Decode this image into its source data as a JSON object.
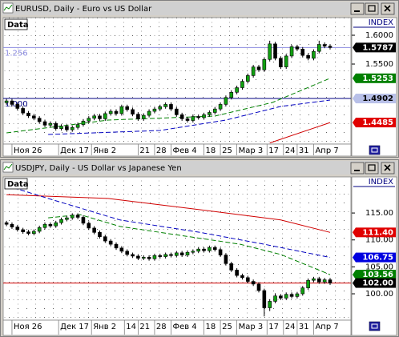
{
  "chart_data": [
    {
      "type": "candlestick",
      "title": "EURUSD, Daily - Euro vs US Dollar",
      "panel_label": "Data",
      "axis_label": "INDEX",
      "up_color": "#10a010",
      "down_color": "#000000",
      "xlim": [
        -0.6,
        62.8
      ],
      "ylim": [
        1.4111,
        1.6306
      ],
      "yticks": [
        {
          "value": 1.6,
          "label": "1.6000"
        },
        {
          "value": 1.55,
          "label": "1.5500"
        }
      ],
      "xticks": [
        {
          "value": 1,
          "label": "Ноя 26"
        },
        {
          "value": 9.5,
          "label": "Дек 17"
        },
        {
          "value": 15.5,
          "label": "Янв 2"
        },
        {
          "value": 24,
          "label": "21"
        },
        {
          "value": 27,
          "label": "28"
        },
        {
          "value": 30,
          "label": "Фев 4"
        },
        {
          "value": 36,
          "label": "18"
        },
        {
          "value": 39,
          "label": "25"
        },
        {
          "value": 42,
          "label": "Мар 3"
        },
        {
          "value": 47.5,
          "label": "17"
        },
        {
          "value": 50.5,
          "label": "24"
        },
        {
          "value": 53,
          "label": "31"
        },
        {
          "value": 56,
          "label": "Апр 7"
        }
      ],
      "hlines": [
        {
          "value": 1.5787,
          "label": "1.256",
          "color": "#8c8ce0"
        },
        {
          "value": 1.4902,
          "label": "1.000",
          "color": "#000080"
        }
      ],
      "last_values": [
        {
          "value": 1.5787,
          "label": "1.5787",
          "color": "#000000",
          "text_color": "#ffffff"
        },
        {
          "value": 1.5253,
          "label": "1.5253",
          "color": "#008000",
          "text_color": "#ffffff"
        },
        {
          "value": 1.4902,
          "label": "1.4902",
          "color": "#b8c0e8",
          "text_color": "#000000"
        },
        {
          "value": 1.4485,
          "label": "1.4485",
          "color": "#e00000",
          "text_color": "#ffffff"
        }
      ],
      "series": [
        {
          "color": "#008000",
          "style": "dashed",
          "x": [
            0,
            18.5,
            38,
            48.5,
            59
          ],
          "values": [
            1.4306,
            1.4528,
            1.4597,
            1.4833,
            1.5253
          ]
        },
        {
          "color": "#0000c0",
          "style": "dashed",
          "x": [
            7.6,
            28,
            40,
            50,
            59
          ],
          "values": [
            1.4278,
            1.4347,
            1.4528,
            1.4764,
            1.4875
          ]
        },
        {
          "color": "#d00000",
          "style": "solid",
          "x": [
            48,
            59
          ],
          "values": [
            1.413,
            1.4485
          ]
        }
      ],
      "candles": [
        [
          1.483,
          1.4895,
          1.4795,
          1.486
        ],
        [
          1.486,
          1.4895,
          1.4765,
          1.48
        ],
        [
          1.48,
          1.4835,
          1.4695,
          1.473
        ],
        [
          1.473,
          1.4765,
          1.4615,
          1.465
        ],
        [
          1.465,
          1.4685,
          1.4565,
          1.46
        ],
        [
          1.46,
          1.4635,
          1.4525,
          1.456
        ],
        [
          1.456,
          1.4595,
          1.4465,
          1.45
        ],
        [
          1.45,
          1.4535,
          1.4405,
          1.444
        ],
        [
          1.444,
          1.4505,
          1.4405,
          1.447
        ],
        [
          1.447,
          1.4505,
          1.4345,
          1.438
        ],
        [
          1.438,
          1.4455,
          1.4345,
          1.442
        ],
        [
          1.442,
          1.4455,
          1.4325,
          1.436
        ],
        [
          1.436,
          1.4435,
          1.4325,
          1.44
        ],
        [
          1.44,
          1.4485,
          1.4365,
          1.445
        ],
        [
          1.445,
          1.4545,
          1.4415,
          1.451
        ],
        [
          1.451,
          1.4595,
          1.4475,
          1.456
        ],
        [
          1.456,
          1.4635,
          1.4525,
          1.46
        ],
        [
          1.46,
          1.4635,
          1.4515,
          1.455
        ],
        [
          1.455,
          1.4675,
          1.4515,
          1.464
        ],
        [
          1.464,
          1.4715,
          1.4605,
          1.468
        ],
        [
          1.468,
          1.4715,
          1.4605,
          1.464
        ],
        [
          1.464,
          1.4795,
          1.4605,
          1.476
        ],
        [
          1.476,
          1.4795,
          1.4675,
          1.471
        ],
        [
          1.471,
          1.4745,
          1.4595,
          1.463
        ],
        [
          1.463,
          1.4665,
          1.4515,
          1.455
        ],
        [
          1.455,
          1.4645,
          1.4515,
          1.461
        ],
        [
          1.461,
          1.4715,
          1.4575,
          1.468
        ],
        [
          1.468,
          1.4755,
          1.4645,
          1.472
        ],
        [
          1.472,
          1.4795,
          1.4685,
          1.476
        ],
        [
          1.476,
          1.4835,
          1.4725,
          1.48
        ],
        [
          1.48,
          1.4835,
          1.4685,
          1.472
        ],
        [
          1.472,
          1.4755,
          1.4585,
          1.462
        ],
        [
          1.462,
          1.4655,
          1.4515,
          1.455
        ],
        [
          1.455,
          1.4585,
          1.4485,
          1.452
        ],
        [
          1.452,
          1.4625,
          1.4485,
          1.459
        ],
        [
          1.459,
          1.4625,
          1.4535,
          1.457
        ],
        [
          1.457,
          1.4655,
          1.4535,
          1.462
        ],
        [
          1.462,
          1.4695,
          1.4585,
          1.466
        ],
        [
          1.466,
          1.4755,
          1.4625,
          1.472
        ],
        [
          1.472,
          1.4835,
          1.4685,
          1.48
        ],
        [
          1.48,
          1.4955,
          1.4765,
          1.492
        ],
        [
          1.492,
          1.5045,
          1.4885,
          1.501
        ],
        [
          1.501,
          1.5125,
          1.4975,
          1.509
        ],
        [
          1.509,
          1.5235,
          1.5055,
          1.52
        ],
        [
          1.52,
          1.5335,
          1.5165,
          1.53
        ],
        [
          1.53,
          1.5485,
          1.5265,
          1.545
        ],
        [
          1.545,
          1.5485,
          1.5365,
          1.54
        ],
        [
          1.54,
          1.5615,
          1.5365,
          1.558
        ],
        [
          1.558,
          1.5905,
          1.5545,
          1.585
        ],
        [
          1.585,
          1.5885,
          1.5565,
          1.56
        ],
        [
          1.56,
          1.5635,
          1.5415,
          1.545
        ],
        [
          1.545,
          1.5675,
          1.5415,
          1.564
        ],
        [
          1.564,
          1.5835,
          1.5605,
          1.58
        ],
        [
          1.58,
          1.5835,
          1.5725,
          1.576
        ],
        [
          1.576,
          1.5795,
          1.5615,
          1.565
        ],
        [
          1.565,
          1.5685,
          1.5565,
          1.56
        ],
        [
          1.56,
          1.5755,
          1.5565,
          1.572
        ],
        [
          1.572,
          1.5905,
          1.5685,
          1.584
        ],
        [
          1.584,
          1.5875,
          1.5775,
          1.581
        ],
        [
          1.581,
          1.5845,
          1.5752,
          1.5787
        ]
      ]
    },
    {
      "type": "candlestick",
      "title": "USDJPY, Daily - US Dollar vs Japanese Yen",
      "panel_label": "Data",
      "axis_label": "INDEX",
      "up_color": "#10a010",
      "down_color": "#000000",
      "xlim": [
        -0.6,
        62.8
      ],
      "ylim": [
        95.1,
        121.7
      ],
      "yticks": [
        {
          "value": 115,
          "label": "115.00"
        },
        {
          "value": 110,
          "label": "110.00"
        },
        {
          "value": 105,
          "label": "105.00"
        },
        {
          "value": 100,
          "label": "100.00"
        }
      ],
      "xticks": [
        {
          "value": 1,
          "label": "Ноя 26"
        },
        {
          "value": 9.5,
          "label": "Дек 17"
        },
        {
          "value": 15.5,
          "label": "Янв 2"
        },
        {
          "value": 21.5,
          "label": "14"
        },
        {
          "value": 24,
          "label": "21"
        },
        {
          "value": 27,
          "label": "28"
        },
        {
          "value": 30,
          "label": "Фев 4"
        },
        {
          "value": 36,
          "label": "18"
        },
        {
          "value": 39,
          "label": "25"
        },
        {
          "value": 42,
          "label": "Мар 3"
        },
        {
          "value": 47.5,
          "label": "17"
        },
        {
          "value": 50.5,
          "label": "24"
        },
        {
          "value": 53,
          "label": "31"
        },
        {
          "value": 56,
          "label": "Апр 7"
        }
      ],
      "hlines": [
        {
          "value": 102,
          "color": "#d00000"
        }
      ],
      "last_values": [
        {
          "value": 111.4,
          "label": "111.40",
          "color": "#e00000",
          "text_color": "#ffffff"
        },
        {
          "value": 106.75,
          "label": "106.75",
          "color": "#0000e0",
          "text_color": "#ffffff"
        },
        {
          "value": 103.56,
          "label": "103.56",
          "color": "#008000",
          "text_color": "#ffffff"
        },
        {
          "value": 102,
          "label": "102.00",
          "color": "#000000",
          "text_color": "#ffffff"
        }
      ],
      "series": [
        {
          "color": "#d00000",
          "style": "solid",
          "x": [
            0,
            18.5,
            35.3,
            50,
            59
          ],
          "values": [
            118.4,
            117.7,
            115.6,
            113.7,
            111.4
          ]
        },
        {
          "color": "#0000c0",
          "style": "dashed",
          "x": [
            0,
            7.6,
            20.7,
            35.3,
            47,
            59
          ],
          "values": [
            120.1,
            117.7,
            113.7,
            111.4,
            109.2,
            106.75
          ]
        },
        {
          "color": "#008000",
          "style": "dashed",
          "x": [
            7.6,
            13.4,
            20.7,
            35.3,
            42.6,
            50,
            59
          ],
          "values": [
            114.1,
            114.7,
            112.5,
            110.3,
            109.2,
            107.3,
            103.56
          ]
        }
      ],
      "candles": [
        [
          113.2,
          113.55,
          112.55,
          112.9
        ],
        [
          112.9,
          113.25,
          112.05,
          112.4
        ],
        [
          112.4,
          112.75,
          111.55,
          111.9
        ],
        [
          111.9,
          112.25,
          111.15,
          111.5
        ],
        [
          111.5,
          111.85,
          110.85,
          111.2
        ],
        [
          111.2,
          111.95,
          110.85,
          111.6
        ],
        [
          111.6,
          112.65,
          111.25,
          112.3
        ],
        [
          112.3,
          113.25,
          111.95,
          112.9
        ],
        [
          112.9,
          113.25,
          112.25,
          112.6
        ],
        [
          112.6,
          113.55,
          112.25,
          113.2
        ],
        [
          113.2,
          114.15,
          112.85,
          113.8
        ],
        [
          113.8,
          114.45,
          113.45,
          114.1
        ],
        [
          114.1,
          114.95,
          113.75,
          114.6
        ],
        [
          114.6,
          114.95,
          113.85,
          114.2
        ],
        [
          114.2,
          114.55,
          112.75,
          113.1
        ],
        [
          113.1,
          113.45,
          111.85,
          112.2
        ],
        [
          112.2,
          112.55,
          111.05,
          111.4
        ],
        [
          111.4,
          111.75,
          110.25,
          110.6
        ],
        [
          110.6,
          110.95,
          109.45,
          109.8
        ],
        [
          109.8,
          110.15,
          108.85,
          109.2
        ],
        [
          109.2,
          109.55,
          108.15,
          108.5
        ],
        [
          108.5,
          108.85,
          107.55,
          107.9
        ],
        [
          107.9,
          108.25,
          106.95,
          107.3
        ],
        [
          107.3,
          107.65,
          106.65,
          107.0
        ],
        [
          107.0,
          107.35,
          106.25,
          106.6
        ],
        [
          106.6,
          107.15,
          106.25,
          106.8
        ],
        [
          106.8,
          107.15,
          106.15,
          106.5
        ],
        [
          106.5,
          107.45,
          106.15,
          107.1
        ],
        [
          107.1,
          107.45,
          106.55,
          106.9
        ],
        [
          106.9,
          107.65,
          106.55,
          107.3
        ],
        [
          107.3,
          107.65,
          106.75,
          107.1
        ],
        [
          107.1,
          107.95,
          106.75,
          107.6
        ],
        [
          107.6,
          107.95,
          106.85,
          107.2
        ],
        [
          107.2,
          108.05,
          106.85,
          107.7
        ],
        [
          107.7,
          108.25,
          107.35,
          107.9
        ],
        [
          107.9,
          108.65,
          107.55,
          108.3
        ],
        [
          108.3,
          108.65,
          107.65,
          108.0
        ],
        [
          108.0,
          108.95,
          107.65,
          108.6
        ],
        [
          108.6,
          108.95,
          107.85,
          108.2
        ],
        [
          108.2,
          108.55,
          106.85,
          107.2
        ],
        [
          107.2,
          107.55,
          105.25,
          105.6
        ],
        [
          105.6,
          105.95,
          104.05,
          104.4
        ],
        [
          104.4,
          104.75,
          103.05,
          103.4
        ],
        [
          103.4,
          103.75,
          102.65,
          103.0
        ],
        [
          103.0,
          103.35,
          101.95,
          102.3
        ],
        [
          102.3,
          102.65,
          101.45,
          101.8
        ],
        [
          101.8,
          102.15,
          100.25,
          100.6
        ],
        [
          100.6,
          100.95,
          95.8,
          97.4
        ],
        [
          97.4,
          99.0,
          96.8,
          98.6
        ],
        [
          98.6,
          100.1,
          98.25,
          99.6
        ],
        [
          99.6,
          99.95,
          98.85,
          99.2
        ],
        [
          99.2,
          100.25,
          98.85,
          99.9
        ],
        [
          99.9,
          100.25,
          99.15,
          99.5
        ],
        [
          99.5,
          100.35,
          99.15,
          100.0
        ],
        [
          100.0,
          101.45,
          99.65,
          101.1
        ],
        [
          101.1,
          102.85,
          100.75,
          102.5
        ],
        [
          102.5,
          103.15,
          102.15,
          102.8
        ],
        [
          102.8,
          103.15,
          101.85,
          102.2
        ],
        [
          102.2,
          102.95,
          101.85,
          102.6
        ],
        [
          102.6,
          102.95,
          101.65,
          102.0
        ]
      ]
    }
  ]
}
